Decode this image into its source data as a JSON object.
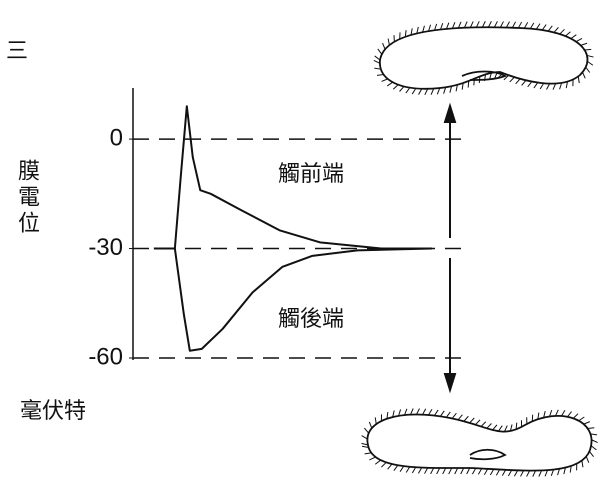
{
  "chart_data": {
    "type": "line",
    "page_marker": "三",
    "ylabel": "膜電位",
    "yunit": "毫伏特",
    "xlim": [
      0,
      10
    ],
    "ylim": [
      -60,
      14
    ],
    "yticks": [
      0,
      -30,
      -60
    ],
    "grid": true,
    "series": [
      {
        "name": "觸前端",
        "color": "#111111",
        "x": [
          0.7,
          1.4,
          1.6,
          1.8,
          2.0,
          2.25,
          2.6,
          3.6,
          4.9,
          6.25,
          8.3,
          10
        ],
        "values": [
          -30,
          -30,
          -10,
          9,
          -5,
          -14,
          -15,
          -19.4,
          -25,
          -28.3,
          -30,
          -30
        ]
      },
      {
        "name": "觸後端",
        "color": "#111111",
        "x": [
          0.7,
          1.4,
          1.7,
          1.9,
          2.3,
          3.0,
          4.0,
          5.0,
          6.0,
          7.5,
          10
        ],
        "values": [
          -30,
          -30,
          -48,
          -58,
          -57.5,
          -52,
          -42,
          -35,
          -32,
          -30.5,
          -30
        ]
      }
    ]
  }
}
